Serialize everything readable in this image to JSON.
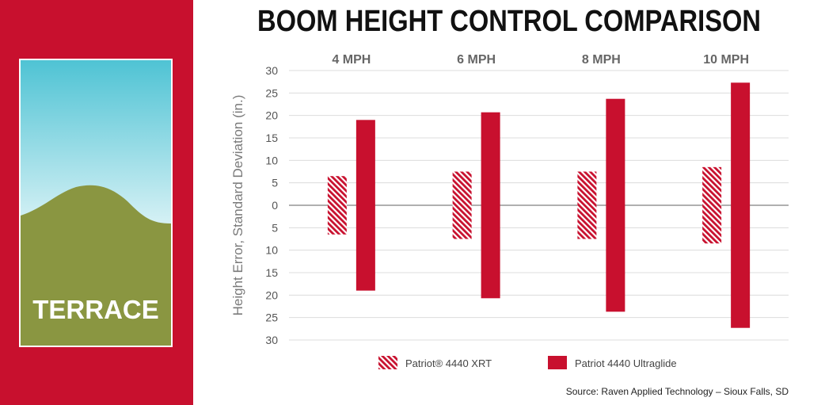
{
  "sidebar": {
    "terrain_label": "TERRACE",
    "colors": {
      "background": "#c8102e",
      "sky_top": "#4fc3d4",
      "sky_bottom": "#ffffff",
      "ground": "#8a9641"
    }
  },
  "source_note": "Source: Raven Applied Technology – Sioux Falls, SD",
  "chart_data": {
    "type": "bar",
    "title": "BOOM HEIGHT CONTROL COMPARISON",
    "ylabel": "Height Error, Standard Deviation (in.)",
    "categories": [
      "4 MPH",
      "6 MPH",
      "8 MPH",
      "10 MPH"
    ],
    "ylim": [
      -30,
      30
    ],
    "yticks": [
      30,
      25,
      20,
      15,
      10,
      5,
      0,
      -5,
      -10,
      -15,
      -20,
      -25,
      -30
    ],
    "ytick_labels": [
      "30",
      "25",
      "20",
      "15",
      "10",
      "5",
      "0",
      "5",
      "10",
      "15",
      "20",
      "25",
      "30"
    ],
    "bars_symmetric_about_zero": true,
    "series": [
      {
        "name": "Patriot® 4440 XRT",
        "values": [
          6.5,
          7.5,
          7.5,
          8.5
        ],
        "style": "hatched",
        "color": "#c8102e"
      },
      {
        "name": "Patriot 4440 Ultraglide",
        "values": [
          19,
          20.7,
          23.7,
          27.3
        ],
        "style": "solid",
        "color": "#c8102e"
      }
    ],
    "grid": true,
    "legend_position": "bottom"
  }
}
